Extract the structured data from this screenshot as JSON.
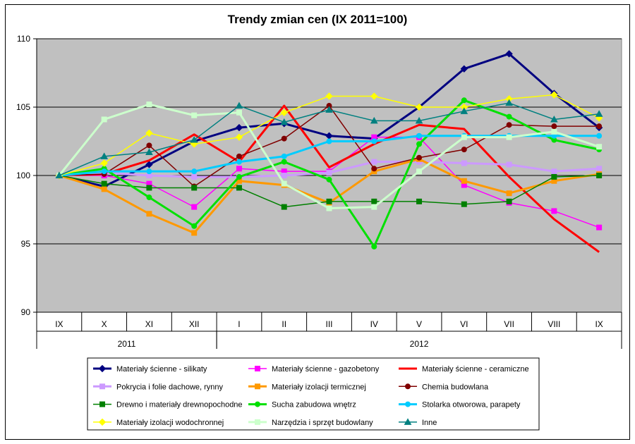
{
  "chart_data": {
    "type": "line",
    "title": "Trendy zmian cen (IX 2011=100)",
    "xlabel": "",
    "ylabel": "",
    "categories": [
      "IX",
      "X",
      "XI",
      "XII",
      "I",
      "II",
      "III",
      "IV",
      "V",
      "VI",
      "VII",
      "VIII",
      "IX"
    ],
    "year_groups": [
      {
        "label": "2011",
        "from": 0,
        "to": 3
      },
      {
        "label": "2012",
        "from": 4,
        "to": 12
      }
    ],
    "ylim": [
      90,
      110
    ],
    "yticks": [
      90,
      95,
      100,
      105,
      110
    ],
    "grid": true,
    "plot_background": "#c0c0c0",
    "legend_position": "bottom",
    "series": [
      {
        "name": "Materiały ścienne - silikaty",
        "color": "#000080",
        "marker": "diamond",
        "width": 3,
        "values": [
          100,
          99.2,
          100.8,
          102.5,
          103.5,
          103.8,
          102.9,
          102.7,
          105.0,
          107.8,
          108.9,
          106.0,
          103.5
        ]
      },
      {
        "name": "Materiały ścienne - gazobetony",
        "color": "#ff00ff",
        "marker": "square",
        "width": 1.5,
        "values": [
          100,
          100.0,
          99.4,
          97.7,
          100.5,
          100.3,
          100.3,
          102.8,
          102.8,
          99.3,
          98.0,
          97.4,
          96.2
        ]
      },
      {
        "name": "Materiały ścienne - ceramiczne",
        "color": "#ff0000",
        "marker": "none",
        "width": 3,
        "values": [
          100,
          100.1,
          101.1,
          103.0,
          101.0,
          105.1,
          100.6,
          102.3,
          103.7,
          103.4,
          99.9,
          96.8,
          94.4
        ]
      },
      {
        "name": "Pokrycia i folie dachowe, rynny",
        "color": "#cc99ff",
        "marker": "square",
        "width": 3,
        "values": [
          100,
          100.2,
          100.0,
          99.9,
          99.9,
          100.0,
          100.2,
          101.0,
          101.0,
          100.9,
          100.8,
          100.3,
          100.5
        ]
      },
      {
        "name": "Materiały izolacji termicznej",
        "color": "#ff9900",
        "marker": "square",
        "width": 3,
        "values": [
          100,
          99.0,
          97.2,
          95.8,
          99.6,
          99.3,
          98.0,
          100.3,
          101.2,
          99.6,
          98.7,
          99.6,
          100.1
        ]
      },
      {
        "name": "Chemia budowlana",
        "color": "#800000",
        "marker": "circle",
        "width": 1.5,
        "values": [
          100,
          100.1,
          102.2,
          99.2,
          101.4,
          102.7,
          105.1,
          100.5,
          101.3,
          101.9,
          103.7,
          103.6,
          103.6
        ]
      },
      {
        "name": "Drewno i materiały drewnopochodne",
        "color": "#008000",
        "marker": "square",
        "width": 1.5,
        "values": [
          100,
          99.4,
          99.1,
          99.1,
          99.1,
          97.7,
          98.1,
          98.1,
          98.1,
          97.9,
          98.1,
          99.9,
          100.0
        ]
      },
      {
        "name": "Sucha zabudowa wnętrz",
        "color": "#00e000",
        "marker": "circle",
        "width": 3,
        "values": [
          100,
          100.5,
          98.4,
          96.3,
          99.9,
          101.0,
          99.7,
          94.8,
          102.3,
          105.5,
          104.3,
          102.6,
          101.9
        ]
      },
      {
        "name": "Stolarka otworowa, parapety",
        "color": "#00ccff",
        "marker": "circle",
        "width": 3,
        "values": [
          100,
          100.3,
          100.3,
          100.3,
          101.0,
          101.4,
          102.5,
          102.5,
          102.9,
          102.9,
          102.9,
          102.9,
          102.9
        ]
      },
      {
        "name": "Materiały izolacji wodochronnej",
        "color": "#ffff00",
        "marker": "diamond",
        "width": 1.5,
        "values": [
          100,
          100.9,
          103.1,
          102.3,
          102.8,
          104.6,
          105.8,
          105.8,
          105.0,
          105.0,
          105.6,
          105.9,
          104.2
        ]
      },
      {
        "name": "Narzędzia i sprzęt budowlany",
        "color": "#ccffcc",
        "marker": "square",
        "width": 3,
        "values": [
          100,
          104.1,
          105.2,
          104.4,
          104.6,
          99.4,
          97.6,
          97.7,
          100.3,
          102.8,
          102.8,
          103.2,
          102.1
        ]
      },
      {
        "name": "Inne",
        "color": "#008080",
        "marker": "triangle",
        "width": 1.5,
        "values": [
          100,
          101.4,
          101.7,
          102.6,
          105.1,
          103.9,
          104.8,
          104.0,
          104.0,
          104.7,
          105.3,
          104.1,
          104.5
        ]
      }
    ]
  }
}
